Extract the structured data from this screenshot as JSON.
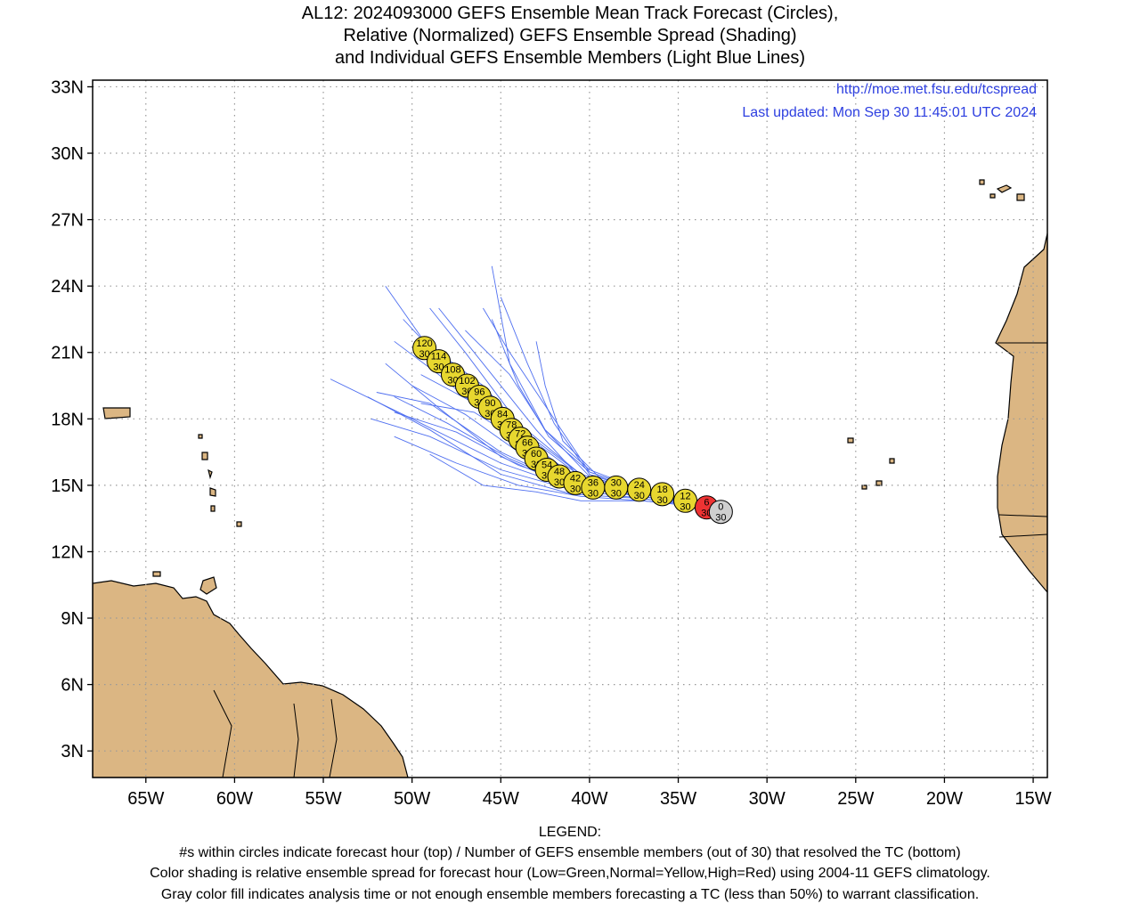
{
  "title": {
    "line1": "AL12: 2024093000 GEFS Ensemble Mean Track Forecast (Circles),",
    "line2": "Relative (Normalized) GEFS Ensemble Spread (Shading)",
    "line3": "and Individual GEFS Ensemble Members (Light Blue Lines)"
  },
  "header": {
    "url": "http://moe.met.fsu.edu/tcspread",
    "updated": "Last updated: Mon Sep 30 11:45:01 UTC 2024"
  },
  "axes": {
    "lat_ticks": [
      "33N",
      "30N",
      "27N",
      "24N",
      "21N",
      "18N",
      "15N",
      "12N",
      "9N",
      "6N",
      "3N"
    ],
    "lat_values": [
      33,
      30,
      27,
      24,
      21,
      18,
      15,
      12,
      9,
      6,
      3
    ],
    "lon_ticks": [
      "65W",
      "60W",
      "55W",
      "50W",
      "45W",
      "40W",
      "35W",
      "30W",
      "25W",
      "20W",
      "15W"
    ],
    "lon_values": [
      -65,
      -60,
      -55,
      -50,
      -45,
      -40,
      -35,
      -30,
      -25,
      -20,
      -15
    ],
    "lon_range": [
      -68,
      -14.2
    ],
    "lat_range": [
      1.8,
      33.3
    ],
    "grid": true
  },
  "colors": {
    "land": "#dbb683",
    "member_track": "#4f6ff0",
    "normal_spread": "#e7d72f",
    "high_spread": "#ee3333",
    "analysis": "#cfcfcf",
    "header_text": "#2d3fe0"
  },
  "track": [
    {
      "hour": "0",
      "members": "30",
      "lon": -32.6,
      "lat": 13.8,
      "color": "#cfcfcf"
    },
    {
      "hour": "6",
      "members": "30",
      "lon": -33.4,
      "lat": 14.0,
      "color": "#ee3333"
    },
    {
      "hour": "12",
      "members": "30",
      "lon": -34.6,
      "lat": 14.3,
      "color": "#e7d72f"
    },
    {
      "hour": "18",
      "members": "30",
      "lon": -35.9,
      "lat": 14.6,
      "color": "#e7d72f"
    },
    {
      "hour": "24",
      "members": "30",
      "lon": -37.2,
      "lat": 14.8,
      "color": "#e7d72f"
    },
    {
      "hour": "30",
      "members": "30",
      "lon": -38.5,
      "lat": 14.9,
      "color": "#e7d72f"
    },
    {
      "hour": "36",
      "members": "30",
      "lon": -39.8,
      "lat": 14.9,
      "color": "#e7d72f"
    },
    {
      "hour": "42",
      "members": "30",
      "lon": -40.8,
      "lat": 15.1,
      "color": "#e7d72f"
    },
    {
      "hour": "48",
      "members": "30",
      "lon": -41.7,
      "lat": 15.4,
      "color": "#e7d72f"
    },
    {
      "hour": "54",
      "members": "30",
      "lon": -42.4,
      "lat": 15.7,
      "color": "#e7d72f"
    },
    {
      "hour": "60",
      "members": "30",
      "lon": -43.0,
      "lat": 16.2,
      "color": "#e7d72f"
    },
    {
      "hour": "66",
      "members": "30",
      "lon": -43.5,
      "lat": 16.7,
      "color": "#e7d72f"
    },
    {
      "hour": "72",
      "members": "30",
      "lon": -43.9,
      "lat": 17.1,
      "color": "#e7d72f"
    },
    {
      "hour": "78",
      "members": "30",
      "lon": -44.4,
      "lat": 17.5,
      "color": "#e7d72f"
    },
    {
      "hour": "84",
      "members": "30",
      "lon": -44.9,
      "lat": 18.0,
      "color": "#e7d72f"
    },
    {
      "hour": "90",
      "members": "30",
      "lon": -45.6,
      "lat": 18.5,
      "color": "#e7d72f"
    },
    {
      "hour": "96",
      "members": "30",
      "lon": -46.2,
      "lat": 19.0,
      "color": "#e7d72f"
    },
    {
      "hour": "102",
      "members": "30",
      "lon": -46.9,
      "lat": 19.5,
      "color": "#e7d72f"
    },
    {
      "hour": "108",
      "members": "30",
      "lon": -47.7,
      "lat": 20.0,
      "color": "#e7d72f"
    },
    {
      "hour": "114",
      "members": "30",
      "lon": -48.5,
      "lat": 20.6,
      "color": "#e7d72f"
    },
    {
      "hour": "120",
      "members": "30",
      "lon": -49.3,
      "lat": 21.2,
      "color": "#e7d72f"
    }
  ],
  "members": [
    [
      [
        -33.4,
        14.0
      ],
      [
        -37,
        14.4
      ],
      [
        -41,
        14.8
      ],
      [
        -45,
        15.7
      ],
      [
        -49,
        17.2
      ],
      [
        -52.3,
        18.0
      ]
    ],
    [
      [
        -33.4,
        14.0
      ],
      [
        -37,
        14.5
      ],
      [
        -41,
        14.9
      ],
      [
        -45,
        16.0
      ],
      [
        -50,
        18.0
      ],
      [
        -54.6,
        19.8
      ]
    ],
    [
      [
        -33.4,
        14.0
      ],
      [
        -37,
        14.5
      ],
      [
        -41,
        15.0
      ],
      [
        -44.5,
        16.2
      ],
      [
        -48,
        17.8
      ],
      [
        -51,
        19.0
      ]
    ],
    [
      [
        -33.4,
        14.0
      ],
      [
        -37,
        14.6
      ],
      [
        -41,
        15.1
      ],
      [
        -44,
        16.5
      ],
      [
        -47,
        18.2
      ],
      [
        -50,
        19.5
      ]
    ],
    [
      [
        -33.4,
        14.0
      ],
      [
        -37,
        14.6
      ],
      [
        -40,
        15.1
      ],
      [
        -43,
        16.5
      ],
      [
        -46,
        18.5
      ],
      [
        -49.5,
        20.0
      ]
    ],
    [
      [
        -33.4,
        14.0
      ],
      [
        -37,
        14.6
      ],
      [
        -40.5,
        15.2
      ],
      [
        -43.5,
        17.0
      ],
      [
        -47,
        19.5
      ],
      [
        -50.5,
        22.5
      ]
    ],
    [
      [
        -33.4,
        14.0
      ],
      [
        -37,
        14.6
      ],
      [
        -40.5,
        15.3
      ],
      [
        -43,
        17.5
      ],
      [
        -46,
        20.5
      ],
      [
        -48.5,
        23.0
      ]
    ],
    [
      [
        -33.4,
        14.0
      ],
      [
        -37,
        14.7
      ],
      [
        -40,
        15.4
      ],
      [
        -42.5,
        17.5
      ],
      [
        -44.5,
        20.5
      ],
      [
        -45.5,
        24.9
      ]
    ],
    [
      [
        -33.4,
        14.0
      ],
      [
        -37,
        14.7
      ],
      [
        -40,
        15.5
      ],
      [
        -42,
        17.8
      ],
      [
        -43.5,
        20.5
      ],
      [
        -45,
        23.5
      ]
    ],
    [
      [
        -33.4,
        14.0
      ],
      [
        -37,
        14.8
      ],
      [
        -40,
        15.6
      ],
      [
        -42,
        18.0
      ],
      [
        -44.5,
        21.0
      ],
      [
        -46,
        23.0
      ]
    ],
    [
      [
        -33.4,
        14.0
      ],
      [
        -37,
        14.7
      ],
      [
        -40.5,
        15.4
      ],
      [
        -44,
        17.5
      ],
      [
        -48,
        20.0
      ],
      [
        -51.5,
        24.0
      ]
    ],
    [
      [
        -33.4,
        14.0
      ],
      [
        -37,
        14.7
      ],
      [
        -40.5,
        15.5
      ],
      [
        -44,
        17.8
      ],
      [
        -47,
        21.0
      ],
      [
        -49,
        23.0
      ]
    ],
    [
      [
        -33.4,
        14.0
      ],
      [
        -37,
        14.3
      ],
      [
        -40.5,
        14.3
      ],
      [
        -43,
        14.7
      ],
      [
        -46,
        15.0
      ],
      [
        -49,
        16.4
      ]
    ],
    [
      [
        -33.4,
        14.0
      ],
      [
        -37,
        14.3
      ],
      [
        -40.5,
        14.5
      ],
      [
        -44,
        15.0
      ],
      [
        -47.5,
        16.0
      ],
      [
        -51,
        17.2
      ]
    ],
    [
      [
        -33.4,
        14.0
      ],
      [
        -37,
        14.4
      ],
      [
        -41,
        14.6
      ],
      [
        -45,
        15.5
      ],
      [
        -49,
        17.5
      ],
      [
        -52.5,
        19.0
      ]
    ],
    [
      [
        -33.4,
        14.0
      ],
      [
        -37,
        14.5
      ],
      [
        -41,
        14.9
      ],
      [
        -45,
        16.3
      ],
      [
        -48.5,
        18.5
      ],
      [
        -51.5,
        20.5
      ]
    ],
    [
      [
        -33.4,
        14.0
      ],
      [
        -37,
        14.8
      ],
      [
        -40,
        15.7
      ],
      [
        -42.5,
        17.5
      ],
      [
        -44.5,
        20.0
      ],
      [
        -47,
        22.0
      ]
    ],
    [
      [
        -33.4,
        14.0
      ],
      [
        -37,
        14.8
      ],
      [
        -40,
        15.6
      ],
      [
        -42.3,
        17.2
      ],
      [
        -44,
        19.5
      ],
      [
        -45.5,
        22.5
      ]
    ],
    [
      [
        -33.4,
        14.0
      ],
      [
        -37,
        14.7
      ],
      [
        -39.5,
        15.4
      ],
      [
        -41.5,
        17.0
      ],
      [
        -42.5,
        19.5
      ],
      [
        -43,
        21.5
      ]
    ],
    [
      [
        -33.4,
        14.0
      ],
      [
        -37,
        14.6
      ],
      [
        -41,
        15.2
      ],
      [
        -44.5,
        17.3
      ],
      [
        -48.5,
        20.0
      ],
      [
        -51,
        21.5
      ]
    ],
    [
      [
        -33.4,
        14.0
      ],
      [
        -37,
        14.6
      ],
      [
        -41,
        15.0
      ],
      [
        -45,
        16.5
      ],
      [
        -49,
        18.7
      ],
      [
        -52,
        19.2
      ]
    ],
    [
      [
        -33.4,
        14.0
      ],
      [
        -37,
        14.7
      ],
      [
        -40.5,
        15.5
      ],
      [
        -43.5,
        17.3
      ],
      [
        -46,
        19.5
      ],
      [
        -48.5,
        21.0
      ]
    ],
    [
      [
        -33.4,
        14.0
      ],
      [
        -37,
        14.6
      ],
      [
        -40.5,
        15.3
      ],
      [
        -43.5,
        16.8
      ],
      [
        -46.5,
        18.3
      ],
      [
        -49.5,
        18.7
      ]
    ],
    [
      [
        -33.4,
        14.0
      ],
      [
        -37,
        14.5
      ],
      [
        -40.5,
        15.0
      ],
      [
        -44,
        15.9
      ],
      [
        -47.5,
        17.4
      ],
      [
        -51,
        18.3
      ]
    ]
  ],
  "legend": {
    "heading": "LEGEND:",
    "line1": "#s within circles indicate forecast hour (top) / Number of GEFS ensemble members (out of 30) that resolved the TC (bottom)",
    "line2": "Color shading is relative ensemble spread for forecast hour (Low=Green,Normal=Yellow,High=Red) using 2004-11 GEFS climatology.",
    "line3": "Gray color fill indicates analysis time or not enough ensemble members forecasting a TC (less than 50%) to warrant classification."
  }
}
